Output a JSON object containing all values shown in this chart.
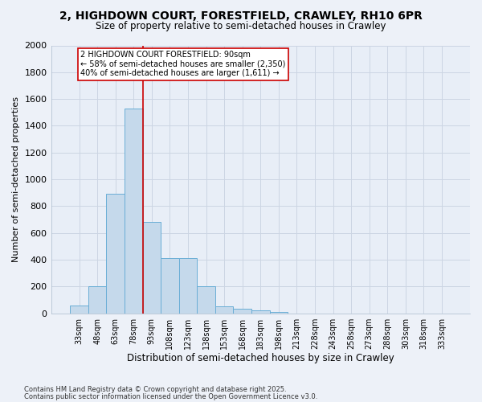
{
  "title_line1": "2, HIGHDOWN COURT, FORESTFIELD, CRAWLEY, RH10 6PR",
  "title_line2": "Size of property relative to semi-detached houses in Crawley",
  "xlabel": "Distribution of semi-detached houses by size in Crawley",
  "ylabel": "Number of semi-detached properties",
  "categories": [
    "33sqm",
    "48sqm",
    "63sqm",
    "78sqm",
    "93sqm",
    "108sqm",
    "123sqm",
    "138sqm",
    "153sqm",
    "168sqm",
    "183sqm",
    "198sqm",
    "213sqm",
    "228sqm",
    "243sqm",
    "258sqm",
    "273sqm",
    "288sqm",
    "303sqm",
    "318sqm",
    "333sqm"
  ],
  "values": [
    60,
    200,
    890,
    1530,
    680,
    415,
    415,
    200,
    55,
    35,
    20,
    10,
    0,
    0,
    0,
    0,
    0,
    0,
    0,
    0,
    0
  ],
  "bar_color": "#c5d9eb",
  "bar_edge_color": "#6aaed6",
  "vline_color": "#cc0000",
  "annotation_text": "2 HIGHDOWN COURT FORESTFIELD: 90sqm\n← 58% of semi-detached houses are smaller (2,350)\n40% of semi-detached houses are larger (1,611) →",
  "annotation_box_color": "#ffffff",
  "annotation_box_edge": "#cc0000",
  "ylim": [
    0,
    2000
  ],
  "yticks": [
    0,
    200,
    400,
    600,
    800,
    1000,
    1200,
    1400,
    1600,
    1800,
    2000
  ],
  "grid_color": "#ccd5e3",
  "background_color": "#e8eef7",
  "fig_background": "#edf1f8",
  "footer_line1": "Contains HM Land Registry data © Crown copyright and database right 2025.",
  "footer_line2": "Contains public sector information licensed under the Open Government Licence v3.0."
}
